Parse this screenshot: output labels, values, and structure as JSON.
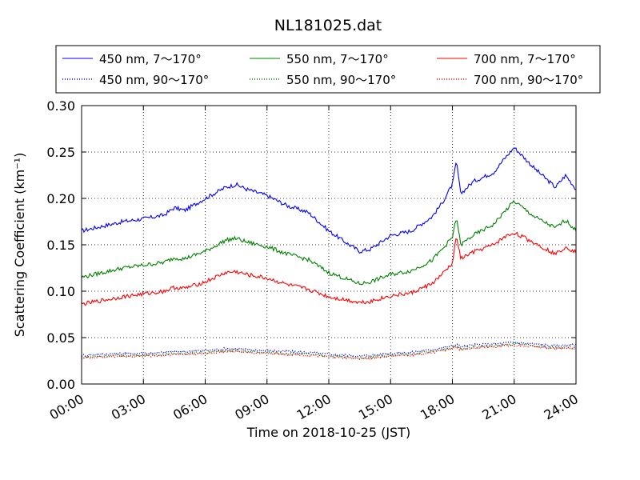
{
  "chart_data": {
    "type": "line",
    "title": "NL181025.dat",
    "xlabel": "Time on 2018-10-25 (JST)",
    "ylabel": "Scattering Coefficient (km⁻¹)",
    "ylim": [
      0,
      0.3
    ],
    "xlim": [
      "00:00",
      "24:00"
    ],
    "grid": true,
    "legend_position": "top",
    "x_tick_labels": [
      "00:00",
      "03:00",
      "06:00",
      "09:00",
      "12:00",
      "15:00",
      "18:00",
      "21:00",
      "24:00"
    ],
    "y_tick_labels": [
      "0.00",
      "0.05",
      "0.10",
      "0.15",
      "0.20",
      "0.25",
      "0.30"
    ],
    "x_hours": [
      0,
      1,
      2,
      3,
      4,
      4.5,
      5,
      6,
      7,
      7.5,
      8,
      9,
      10,
      11,
      12,
      13,
      13.5,
      14,
      15,
      16,
      17,
      17.5,
      18,
      18.2,
      18.4,
      19,
      20,
      20.5,
      21,
      22,
      23,
      23.5,
      24
    ],
    "series": [
      {
        "name": "450 nm, 7～170°",
        "color": "#0000ff",
        "style": "solid",
        "values": [
          0.165,
          0.17,
          0.175,
          0.178,
          0.182,
          0.19,
          0.187,
          0.2,
          0.212,
          0.215,
          0.21,
          0.203,
          0.192,
          0.185,
          0.165,
          0.15,
          0.143,
          0.145,
          0.16,
          0.165,
          0.18,
          0.195,
          0.215,
          0.24,
          0.205,
          0.218,
          0.228,
          0.242,
          0.255,
          0.232,
          0.212,
          0.225,
          0.21
        ]
      },
      {
        "name": "450 nm, 90～170°",
        "color": "#0000ff",
        "style": "dotted",
        "values": [
          0.031,
          0.032,
          0.033,
          0.033,
          0.034,
          0.035,
          0.035,
          0.036,
          0.038,
          0.038,
          0.037,
          0.036,
          0.035,
          0.034,
          0.032,
          0.031,
          0.03,
          0.031,
          0.033,
          0.034,
          0.037,
          0.039,
          0.041,
          0.043,
          0.04,
          0.042,
          0.043,
          0.044,
          0.045,
          0.043,
          0.041,
          0.042,
          0.042
        ]
      },
      {
        "name": "550 nm, 7～170°",
        "color": "#008000",
        "style": "solid",
        "values": [
          0.115,
          0.12,
          0.125,
          0.128,
          0.131,
          0.136,
          0.135,
          0.143,
          0.155,
          0.157,
          0.153,
          0.148,
          0.14,
          0.134,
          0.12,
          0.112,
          0.108,
          0.11,
          0.118,
          0.122,
          0.133,
          0.145,
          0.158,
          0.18,
          0.15,
          0.16,
          0.172,
          0.185,
          0.197,
          0.18,
          0.168,
          0.177,
          0.165
        ]
      },
      {
        "name": "550 nm, 90～170°",
        "color": "#008000",
        "style": "dotted",
        "values": [
          0.029,
          0.03,
          0.031,
          0.031,
          0.032,
          0.033,
          0.033,
          0.034,
          0.036,
          0.036,
          0.035,
          0.034,
          0.033,
          0.032,
          0.03,
          0.029,
          0.028,
          0.029,
          0.031,
          0.032,
          0.035,
          0.037,
          0.039,
          0.041,
          0.038,
          0.04,
          0.041,
          0.042,
          0.043,
          0.041,
          0.039,
          0.04,
          0.039
        ]
      },
      {
        "name": "700 nm, 7～170°",
        "color": "#ff0000",
        "style": "solid",
        "values": [
          0.086,
          0.09,
          0.094,
          0.097,
          0.1,
          0.104,
          0.103,
          0.11,
          0.12,
          0.121,
          0.118,
          0.114,
          0.107,
          0.102,
          0.094,
          0.09,
          0.088,
          0.089,
          0.095,
          0.098,
          0.108,
          0.118,
          0.13,
          0.16,
          0.135,
          0.142,
          0.15,
          0.158,
          0.163,
          0.152,
          0.14,
          0.148,
          0.142
        ]
      },
      {
        "name": "700 nm, 90～170°",
        "color": "#ff0000",
        "style": "dotted",
        "values": [
          0.028,
          0.029,
          0.03,
          0.03,
          0.031,
          0.032,
          0.032,
          0.033,
          0.035,
          0.035,
          0.034,
          0.033,
          0.032,
          0.031,
          0.029,
          0.028,
          0.027,
          0.028,
          0.03,
          0.031,
          0.034,
          0.036,
          0.038,
          0.04,
          0.037,
          0.039,
          0.04,
          0.041,
          0.042,
          0.04,
          0.038,
          0.039,
          0.038
        ]
      }
    ]
  }
}
